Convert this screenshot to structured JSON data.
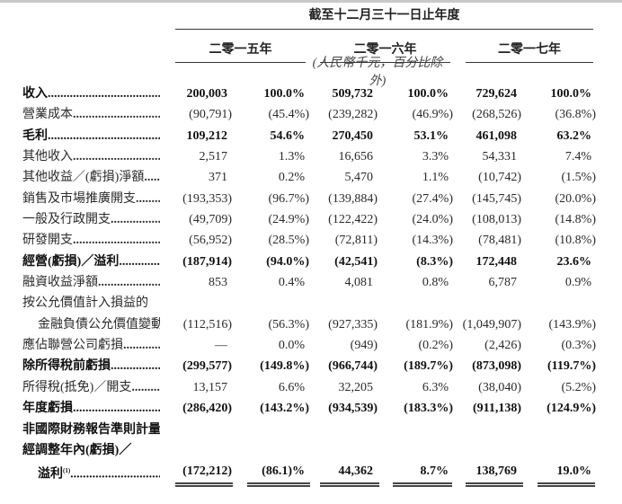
{
  "header": {
    "period": "截至十二月三十一日止年度",
    "years": [
      "二零一五年",
      "二零一六年",
      "二零一七年"
    ],
    "unit_note": "(人民幣千元，百分比除外)"
  },
  "rows": [
    {
      "label": "收入",
      "bold": true,
      "values": [
        "200,003",
        "100.0%",
        "509,732",
        "100.0%",
        "729,624",
        "100.0%"
      ]
    },
    {
      "label": "營業成本",
      "bold": false,
      "values": [
        "(90,791)",
        "(45.4%)",
        "(239,282)",
        "(46.9%)",
        "(268,526)",
        "(36.8%)"
      ]
    },
    {
      "label": "毛利",
      "bold": true,
      "values": [
        "109,212",
        "54.6%",
        "270,450",
        "53.1%",
        "461,098",
        "63.2%"
      ]
    },
    {
      "label": "其他收入",
      "bold": false,
      "values": [
        "2,517",
        "1.3%",
        "16,656",
        "3.3%",
        "54,331",
        "7.4%"
      ]
    },
    {
      "label": "其他收益／(虧損)淨額",
      "bold": false,
      "values": [
        "371",
        "0.2%",
        "5,470",
        "1.1%",
        "(10,742)",
        "(1.5%)"
      ]
    },
    {
      "label": "銷售及市場推廣開支",
      "bold": false,
      "values": [
        "(193,353)",
        "(96.7%)",
        "(139,884)",
        "(27.4%)",
        "(145,745)",
        "(20.0%)"
      ]
    },
    {
      "label": "一般及行政開支",
      "bold": false,
      "values": [
        "(49,709)",
        "(24.9%)",
        "(122,422)",
        "(24.0%)",
        "(108,013)",
        "(14.8%)"
      ]
    },
    {
      "label": "研發開支",
      "bold": false,
      "values": [
        "(56,952)",
        "(28.5%)",
        "(72,811)",
        "(14.3%)",
        "(78,481)",
        "(10.8%)"
      ]
    },
    {
      "label": "經營(虧損)／溢利",
      "bold": true,
      "values": [
        "(187,914)",
        "(94.0%)",
        "(42,541)",
        "(8.3%)",
        "172,448",
        "23.6%"
      ]
    },
    {
      "label": "融資收益淨額",
      "bold": false,
      "values": [
        "853",
        "0.4%",
        "4,081",
        "0.8%",
        "6,787",
        "0.9%"
      ]
    },
    {
      "label": "按公允價值計入損益的",
      "bold": false,
      "nodots": true,
      "values": [
        "",
        "",
        "",
        "",
        "",
        ""
      ]
    },
    {
      "label": "金融負債公允價值變動",
      "bold": false,
      "indent": true,
      "values": [
        "(112,516)",
        "(56.3%)",
        "(927,335)",
        "(181.9%)",
        "(1,049,907)",
        "(143.9%)"
      ]
    },
    {
      "label": "應佔聯營公司虧損",
      "bold": false,
      "values": [
        "—",
        "0.0%",
        "(949)",
        "(0.2%)",
        "(2,426)",
        "(0.3%)"
      ]
    },
    {
      "label": "除所得稅前虧損",
      "bold": true,
      "values": [
        "(299,577)",
        "(149.8%)",
        "(966,744)",
        "(189.7%)",
        "(873,098)",
        "(119.7%)"
      ]
    },
    {
      "label": "所得稅(抵免)／開支",
      "bold": false,
      "values": [
        "13,157",
        "6.6%",
        "32,205",
        "6.3%",
        "(38,040)",
        "(5.2%)"
      ]
    },
    {
      "label": "年度虧損",
      "bold": true,
      "values": [
        "(286,420)",
        "(143.2%)",
        "(934,539)",
        "(183.3%)",
        "(911,138)",
        "(124.9%)"
      ]
    },
    {
      "label": "非國際財務報告準則計量",
      "bold": true,
      "nodots": true,
      "values": [
        "",
        "",
        "",
        "",
        "",
        ""
      ]
    },
    {
      "label": "經調整年內(虧損)／",
      "bold": true,
      "nodots": true,
      "values": [
        "",
        "",
        "",
        "",
        "",
        ""
      ]
    },
    {
      "label": "溢利",
      "footnote": "(1)",
      "bold": true,
      "indent": true,
      "values": [
        "(172,212)",
        "(86.1)%",
        "44,362",
        "8.7%",
        "138,769",
        "19.0%"
      ]
    }
  ]
}
